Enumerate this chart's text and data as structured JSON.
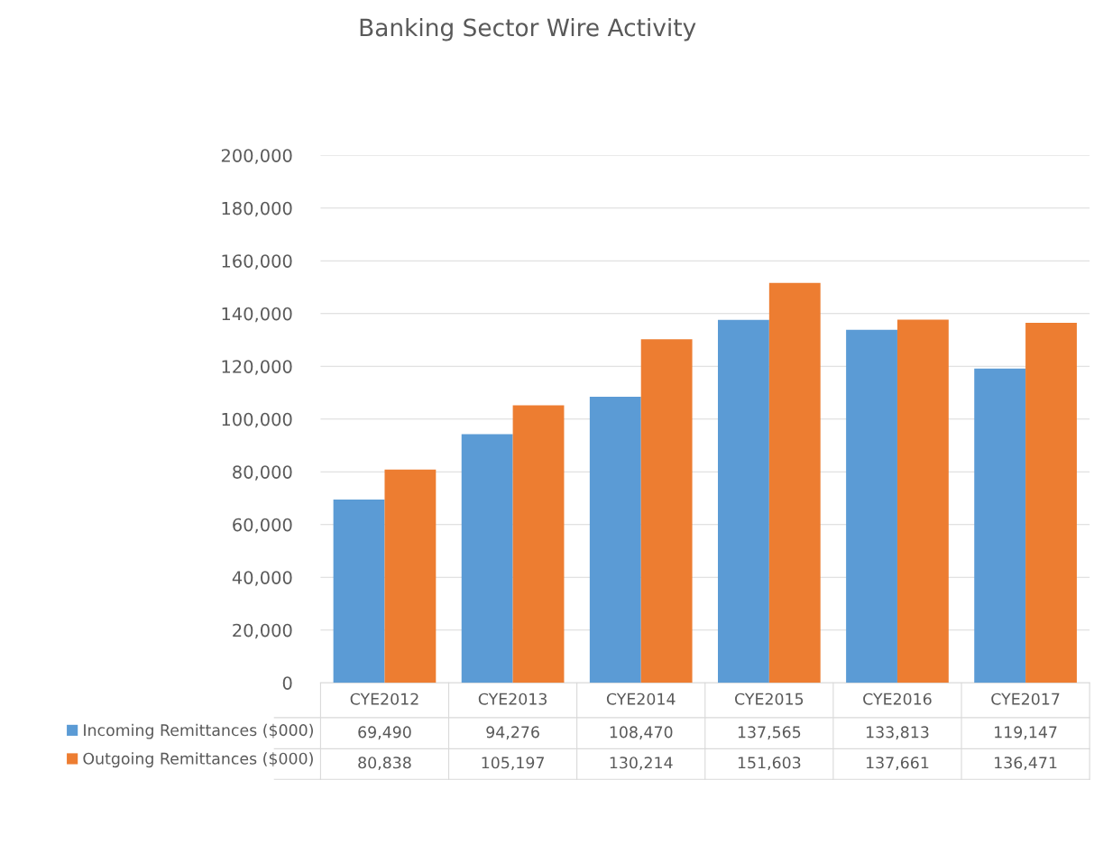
{
  "chart_data": {
    "type": "bar",
    "title": "Banking Sector Wire Activity",
    "categories": [
      "CYE2012",
      "CYE2013",
      "CYE2014",
      "CYE2015",
      "CYE2016",
      "CYE2017"
    ],
    "series": [
      {
        "name": "Incoming Remittances ($000)",
        "color": "#5b9bd5",
        "values": [
          69490,
          94276,
          108470,
          137565,
          133813,
          119147
        ],
        "value_labels": [
          "69,490",
          "94,276",
          "108,470",
          "137,565",
          "133,813",
          "119,147"
        ]
      },
      {
        "name": "Outgoing Remittances ($000)",
        "color": "#ed7d31",
        "values": [
          80838,
          105197,
          130214,
          151603,
          137661,
          136471
        ],
        "value_labels": [
          "80,838",
          "105,197",
          "130,214",
          "151,603",
          "137,661",
          "136,471"
        ]
      }
    ],
    "ylim": [
      0,
      200000
    ],
    "yticks": [
      {
        "value": 0,
        "label": "0"
      },
      {
        "value": 20000,
        "label": "20,000"
      },
      {
        "value": 40000,
        "label": "40,000"
      },
      {
        "value": 60000,
        "label": "60,000"
      },
      {
        "value": 80000,
        "label": "80,000"
      },
      {
        "value": 100000,
        "label": "100,000"
      },
      {
        "value": 120000,
        "label": "120,000"
      },
      {
        "value": 140000,
        "label": "140,000"
      },
      {
        "value": 160000,
        "label": "160,000"
      },
      {
        "value": 180000,
        "label": "180,000"
      },
      {
        "value": 200000,
        "label": "200,000"
      }
    ],
    "grid": "y",
    "legend": "bottom"
  }
}
